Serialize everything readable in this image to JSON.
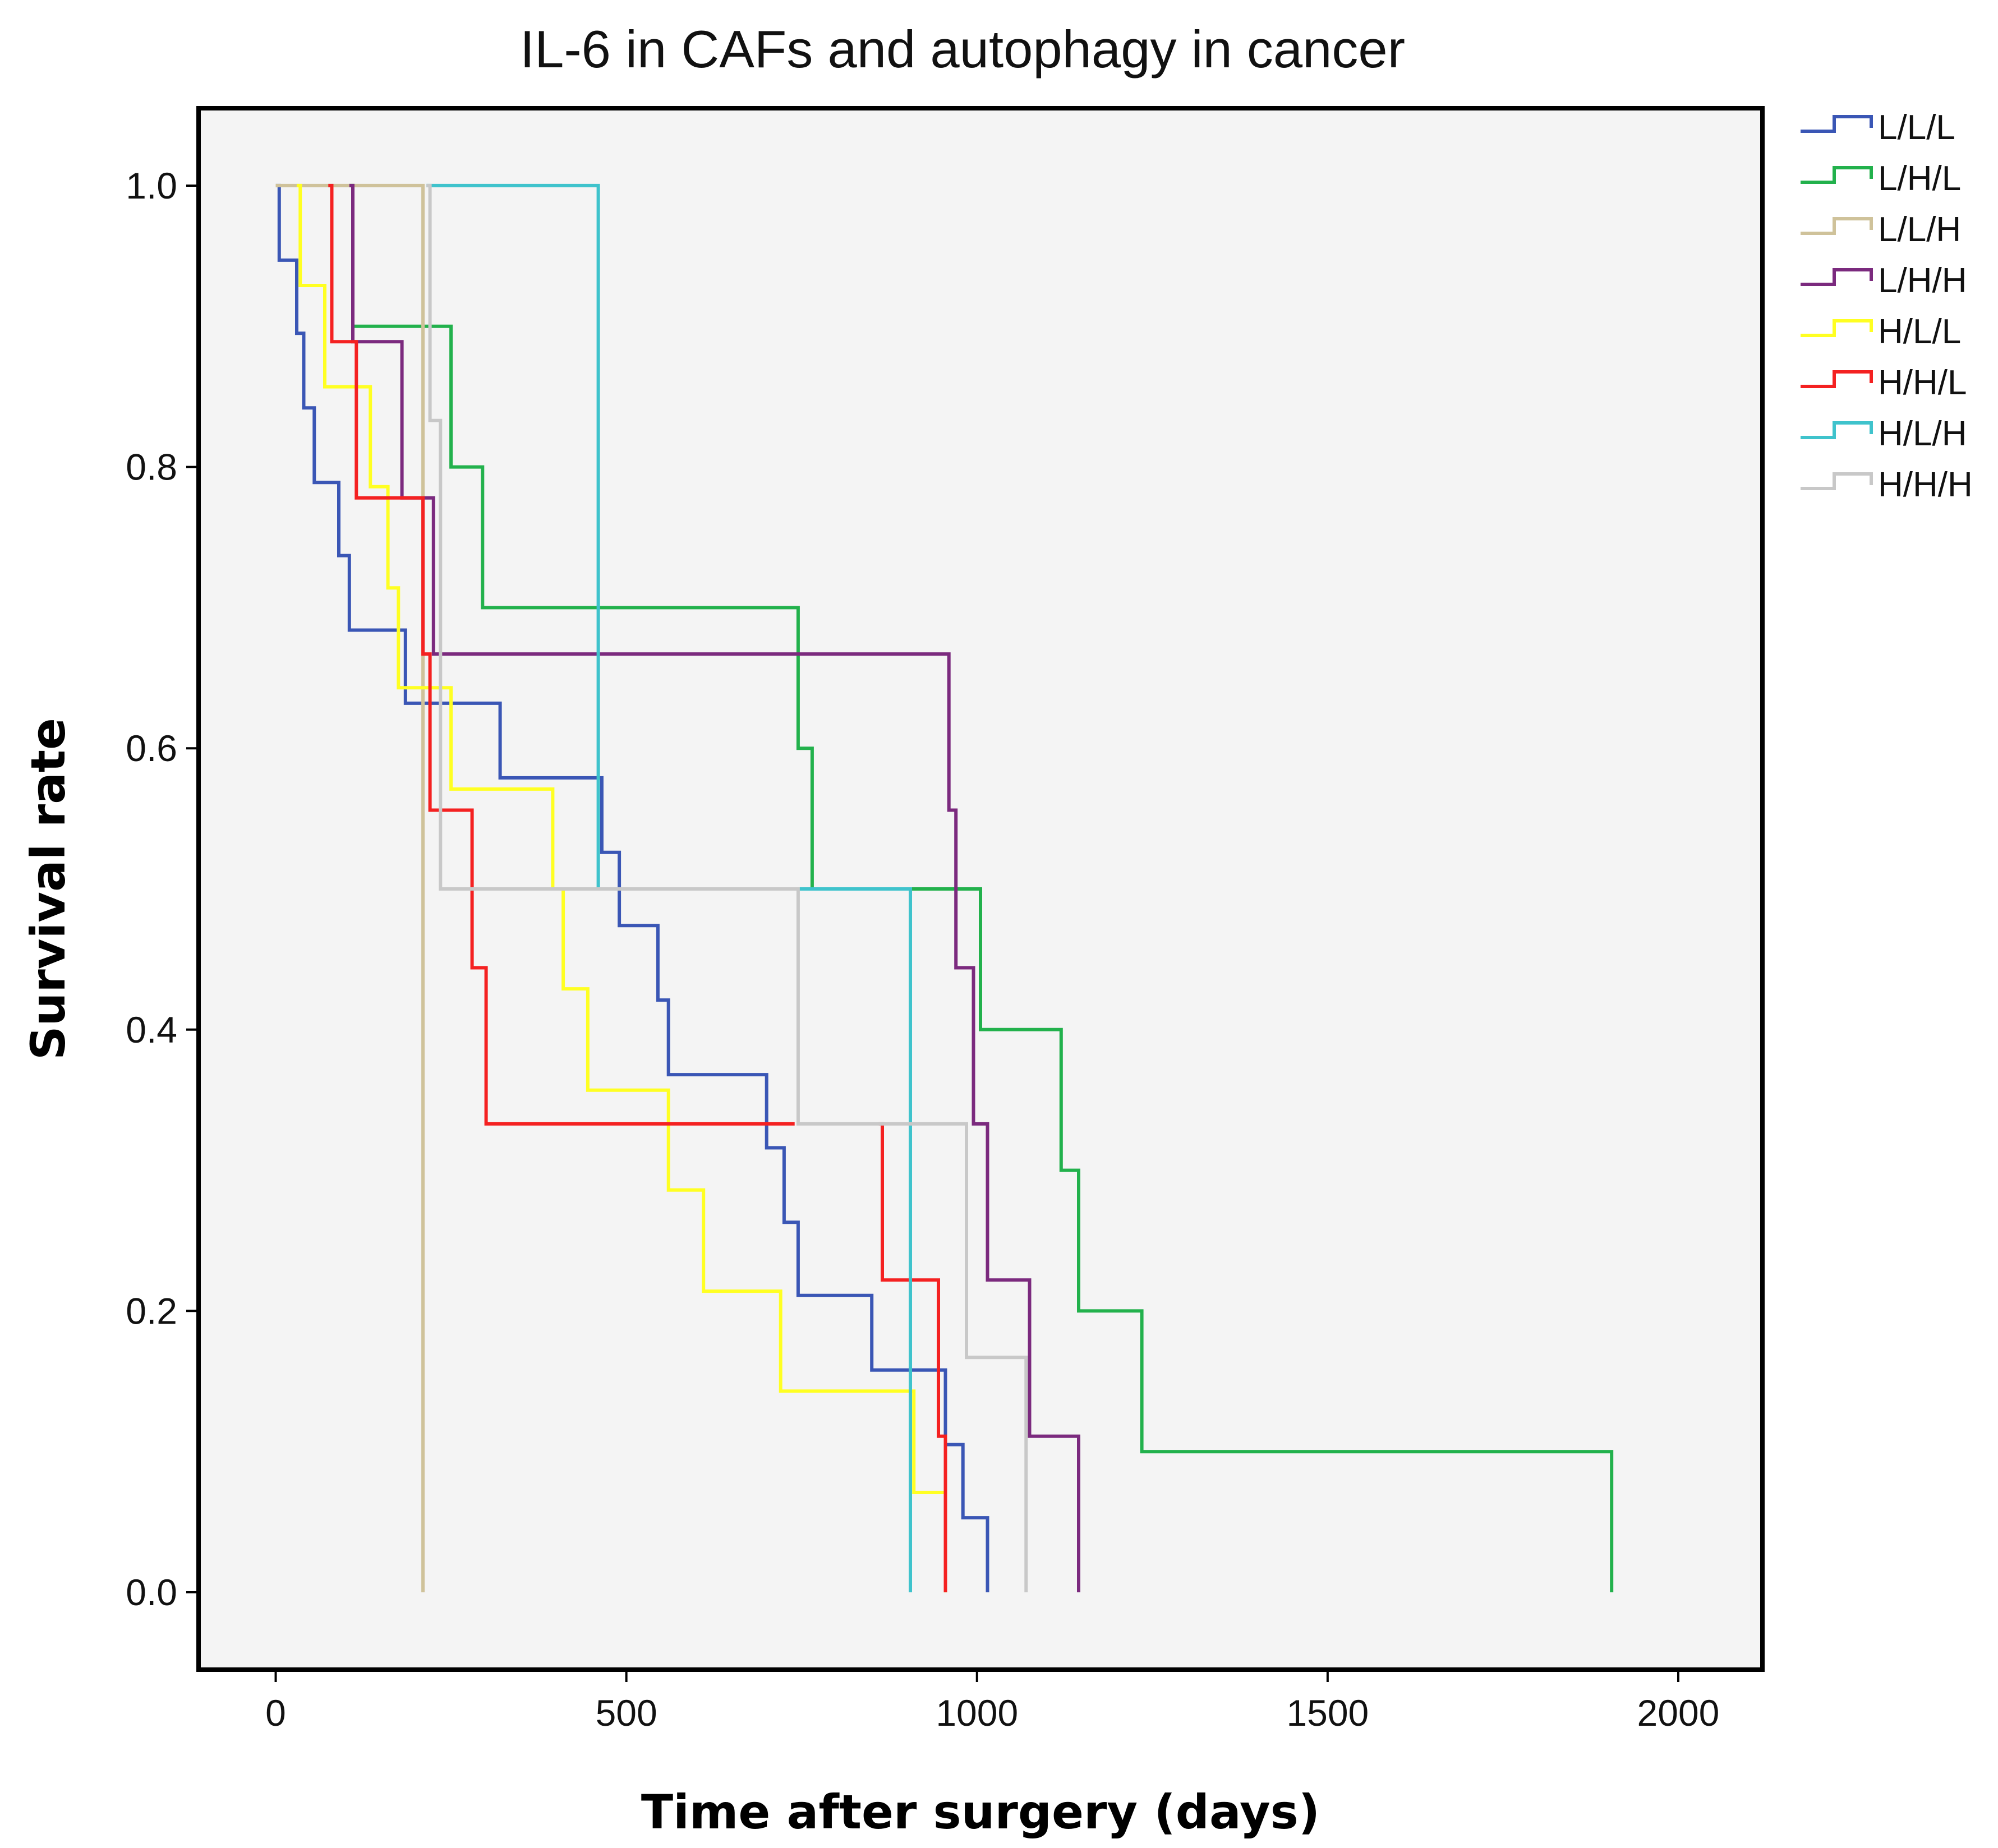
{
  "chart_data": {
    "type": "line",
    "subtype": "kaplan-meier step",
    "title": "IL-6 in CAFs and autophagy in cancer",
    "xlabel": "Time after surgery (days)",
    "ylabel": "Survival rate",
    "xlim": [
      -110,
      2120
    ],
    "ylim": [
      -0.055,
      1.055
    ],
    "xticks": [
      0,
      500,
      1000,
      1500,
      2000
    ],
    "yticks": [
      0.0,
      0.2,
      0.4,
      0.6,
      0.8,
      1.0
    ],
    "xtick_labels": [
      "0",
      "500",
      "1000",
      "1500",
      "2000"
    ],
    "ytick_labels": [
      "0.0",
      "0.2",
      "0.4",
      "0.6",
      "0.8",
      "1.0"
    ],
    "grid": false,
    "legend_position": "right-top, outside plot",
    "plot_background": "#f4f4f4",
    "series": [
      {
        "name": "L/L/L",
        "color": "#3a56b5",
        "steps": [
          [
            0,
            1.0
          ],
          [
            5,
            0.947
          ],
          [
            30,
            0.895
          ],
          [
            40,
            0.842
          ],
          [
            55,
            0.789
          ],
          [
            90,
            0.737
          ],
          [
            105,
            0.684
          ],
          [
            185,
            0.632
          ],
          [
            320,
            0.579
          ],
          [
            465,
            0.526
          ],
          [
            490,
            0.474
          ],
          [
            545,
            0.421
          ],
          [
            560,
            0.368
          ],
          [
            700,
            0.316
          ],
          [
            725,
            0.263
          ],
          [
            745,
            0.211
          ],
          [
            850,
            0.158
          ],
          [
            955,
            0.105
          ],
          [
            980,
            0.053
          ],
          [
            1015,
            0.0
          ]
        ]
      },
      {
        "name": "L/H/L",
        "color": "#22b14c",
        "steps": [
          [
            105,
            1.0
          ],
          [
            110,
            0.9
          ],
          [
            250,
            0.8
          ],
          [
            295,
            0.7
          ],
          [
            745,
            0.6
          ],
          [
            765,
            0.5
          ],
          [
            1005,
            0.4
          ],
          [
            1120,
            0.3
          ],
          [
            1145,
            0.2
          ],
          [
            1235,
            0.1
          ],
          [
            1905,
            0.0
          ]
        ]
      },
      {
        "name": "L/L/H",
        "color": "#cfc29a",
        "steps": [
          [
            0,
            1.0
          ],
          [
            210,
            0.0
          ]
        ]
      },
      {
        "name": "L/H/H",
        "color": "#7b2a7e",
        "steps": [
          [
            105,
            1.0
          ],
          [
            110,
            0.889
          ],
          [
            180,
            0.778
          ],
          [
            225,
            0.667
          ],
          [
            960,
            0.556
          ],
          [
            970,
            0.444
          ],
          [
            995,
            0.333
          ],
          [
            1015,
            0.222
          ],
          [
            1075,
            0.111
          ],
          [
            1145,
            0.0
          ]
        ]
      },
      {
        "name": "H/L/L",
        "color": "#ffff22",
        "steps": [
          [
            30,
            1.0
          ],
          [
            35,
            0.929
          ],
          [
            70,
            0.857
          ],
          [
            135,
            0.786
          ],
          [
            160,
            0.714
          ],
          [
            175,
            0.643
          ],
          [
            250,
            0.571
          ],
          [
            395,
            0.5
          ],
          [
            410,
            0.429
          ],
          [
            445,
            0.357
          ],
          [
            560,
            0.286
          ],
          [
            610,
            0.214
          ],
          [
            720,
            0.143
          ],
          [
            910,
            0.071
          ],
          [
            955,
            0.0
          ]
        ]
      },
      {
        "name": "H/H/L",
        "color": "#f42121",
        "steps": [
          [
            75,
            1.0
          ],
          [
            80,
            0.889
          ],
          [
            115,
            0.778
          ],
          [
            210,
            0.667
          ],
          [
            220,
            0.556
          ],
          [
            280,
            0.444
          ],
          [
            300,
            0.333
          ],
          [
            740,
            null
          ],
          [
            860,
            0.333
          ],
          [
            865,
            0.222
          ],
          [
            945,
            0.111
          ],
          [
            955,
            0.0
          ]
        ]
      },
      {
        "name": "H/L/H",
        "color": "#3fc3cc",
        "steps": [
          [
            215,
            1.0
          ],
          [
            460,
            0.5
          ],
          [
            905,
            0.0
          ]
        ]
      },
      {
        "name": "H/H/H",
        "color": "#c8c8c8",
        "steps": [
          [
            215,
            1.0
          ],
          [
            220,
            0.833
          ],
          [
            235,
            0.5
          ],
          [
            745,
            0.333
          ],
          [
            985,
            0.167
          ],
          [
            1070,
            0.0
          ]
        ]
      }
    ]
  }
}
